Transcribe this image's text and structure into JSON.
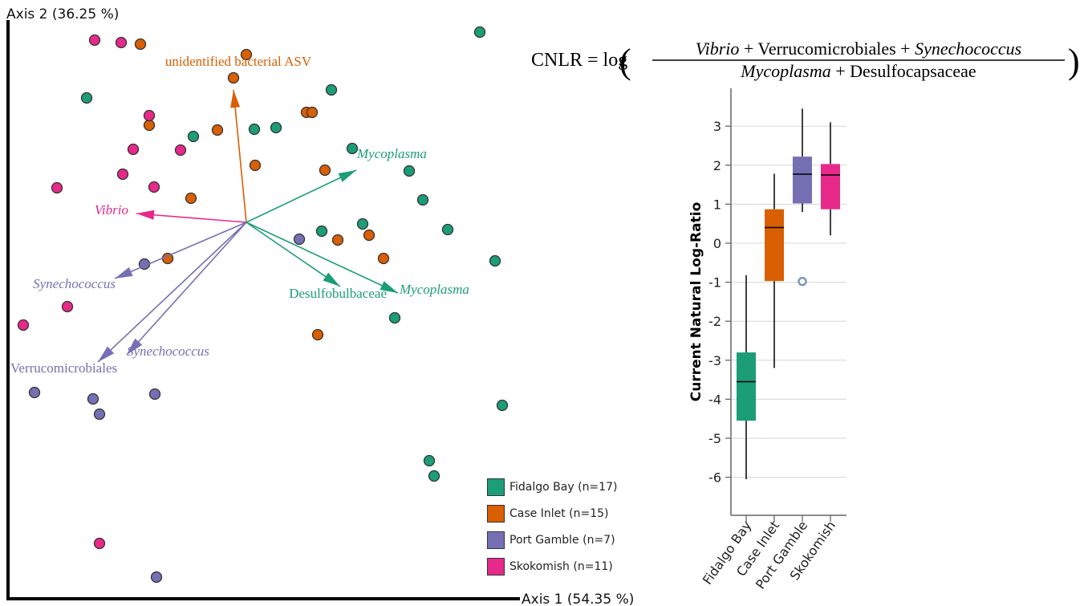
{
  "chart_data": [
    {
      "type": "scatter",
      "xlabel": "Axis 1 (54.35 %)",
      "ylabel": "Axis 2 (36.25 %)",
      "legend": [
        {
          "label": "Fidalgo Bay (n=17)",
          "color": "#1b9e77"
        },
        {
          "label": "Case Inlet (n=15)",
          "color": "#d95f02"
        },
        {
          "label": "Port Gamble (n=7)",
          "color": "#7570b3"
        },
        {
          "label": "Skokomish (n=11)",
          "color": "#e7298a"
        }
      ],
      "legend_position": "bottom-right",
      "series": [
        {
          "name": "Fidalgo Bay (n=17)",
          "color": "#1b9e77",
          "points": [
            [
              598,
              40
            ],
            [
              108,
              122
            ],
            [
              413,
              112
            ],
            [
              241,
              170
            ],
            [
              317,
              161
            ],
            [
              344,
              159
            ],
            [
              439,
              185
            ],
            [
              510,
              213
            ],
            [
              527,
              249
            ],
            [
              452,
              279
            ],
            [
              401,
              288
            ],
            [
              558,
              286
            ],
            [
              617,
              325
            ],
            [
              492,
              396
            ],
            [
              626,
              505
            ],
            [
              535,
              574
            ],
            [
              541,
              593
            ]
          ]
        },
        {
          "name": "Case Inlet (n=15)",
          "color": "#d95f02",
          "points": [
            [
              175,
              55
            ],
            [
              307,
              68
            ],
            [
              291,
              97
            ],
            [
              186,
              156
            ],
            [
              271,
              162
            ],
            [
              382,
              140
            ],
            [
              389,
              140
            ],
            [
              318,
              206
            ],
            [
              405,
              212
            ],
            [
              238,
              247
            ],
            [
              460,
              293
            ],
            [
              421,
              299
            ],
            [
              478,
              322
            ],
            [
              209,
              322
            ],
            [
              396,
              417
            ]
          ]
        },
        {
          "name": "Port Gamble (n=7)",
          "color": "#7570b3",
          "points": [
            [
              373,
              298
            ],
            [
              180,
              329
            ],
            [
              43,
              489
            ],
            [
              116,
              497
            ],
            [
              193,
              491
            ],
            [
              124,
              516
            ],
            [
              195,
              719
            ]
          ]
        },
        {
          "name": "Skokomish (n=11)",
          "color": "#e7298a",
          "points": [
            [
              118,
              50
            ],
            [
              151,
              53
            ],
            [
              186,
              144
            ],
            [
              166,
              186
            ],
            [
              225,
              187
            ],
            [
              153,
              217
            ],
            [
              71,
              234
            ],
            [
              192,
              233
            ],
            [
              84,
              382
            ],
            [
              29,
              405
            ],
            [
              124,
              677
            ]
          ]
        }
      ],
      "arrows": [
        {
          "label": "unidentified bacterial ASV",
          "color": "#d95f02",
          "italic": false,
          "end": [
            291,
            112
          ],
          "label_pos": [
            297,
            82
          ],
          "anchor": "middle"
        },
        {
          "label": "Mycoplasma",
          "color": "#1b9e77",
          "italic": true,
          "end": [
            444,
            212
          ],
          "label_pos": [
            445,
            197
          ],
          "anchor": "start"
        },
        {
          "label": "Vibrio",
          "color": "#e7298a",
          "italic": true,
          "end": [
            170,
            266
          ],
          "label_pos": [
            160,
            267
          ],
          "anchor": "end"
        },
        {
          "label": "Synechococcus",
          "color": "#7570b3",
          "italic": true,
          "end": [
            143,
            347
          ],
          "label_pos": [
            144,
            359
          ],
          "anchor": "end"
        },
        {
          "label": "Mycoplasma",
          "color": "#1b9e77",
          "italic": true,
          "end": [
            496,
            365
          ],
          "label_pos": [
            498,
            366
          ],
          "anchor": "start"
        },
        {
          "label": "Desulfobulbaceae",
          "color": "#1b9e77",
          "italic": false,
          "end": [
            424,
            357
          ],
          "label_pos": [
            482,
            371
          ],
          "anchor": "end"
        },
        {
          "label": "Synechococcus",
          "color": "#7570b3",
          "italic": true,
          "end": [
            158,
            442
          ],
          "label_pos": [
            158,
            443
          ],
          "anchor": "start"
        },
        {
          "label": "Verrucomicrobiales",
          "color": "#7570b3",
          "italic": false,
          "end": [
            122,
            451
          ],
          "label_pos": [
            13,
            464
          ],
          "anchor": "start"
        }
      ]
    },
    {
      "type": "box",
      "formula": {
        "lhs": "CNLR = log",
        "num": [
          [
            "Vibrio",
            true
          ],
          [
            " + Verrucomicrobiales + ",
            false
          ],
          [
            "Synechococcus",
            true
          ]
        ],
        "den": [
          [
            "Mycoplasma",
            true
          ],
          [
            " + Desulfocapsaceae",
            false
          ]
        ]
      },
      "ylabel": "Current Natural Log-Ratio",
      "ylim": [
        -7,
        4
      ],
      "yticks": [
        3,
        2,
        1,
        0,
        -1,
        -2,
        -3,
        -4,
        -5,
        -6
      ],
      "grid": true,
      "categories": [
        "Fidalgo Bay",
        "Case Inlet",
        "Port Gamble",
        "Skokomish"
      ],
      "colors": [
        "#1b9e77",
        "#d95f02",
        "#7570b3",
        "#e7298a"
      ],
      "boxes": [
        {
          "category": "Fidalgo Bay",
          "min": -6.05,
          "q1": -4.55,
          "median": -3.55,
          "q3": -2.8,
          "max": -0.82,
          "outliers": []
        },
        {
          "category": "Case Inlet",
          "min": -3.2,
          "q1": -0.97,
          "median": 0.4,
          "q3": 0.87,
          "max": 1.78,
          "outliers": []
        },
        {
          "category": "Port Gamble",
          "min": 0.8,
          "q1": 1.02,
          "median": 1.77,
          "q3": 2.22,
          "max": 3.45,
          "outliers": [
            -0.98
          ]
        },
        {
          "category": "Skokomish",
          "min": 0.2,
          "q1": 0.87,
          "median": 1.75,
          "q3": 2.03,
          "max": 3.1,
          "outliers": []
        }
      ]
    }
  ]
}
